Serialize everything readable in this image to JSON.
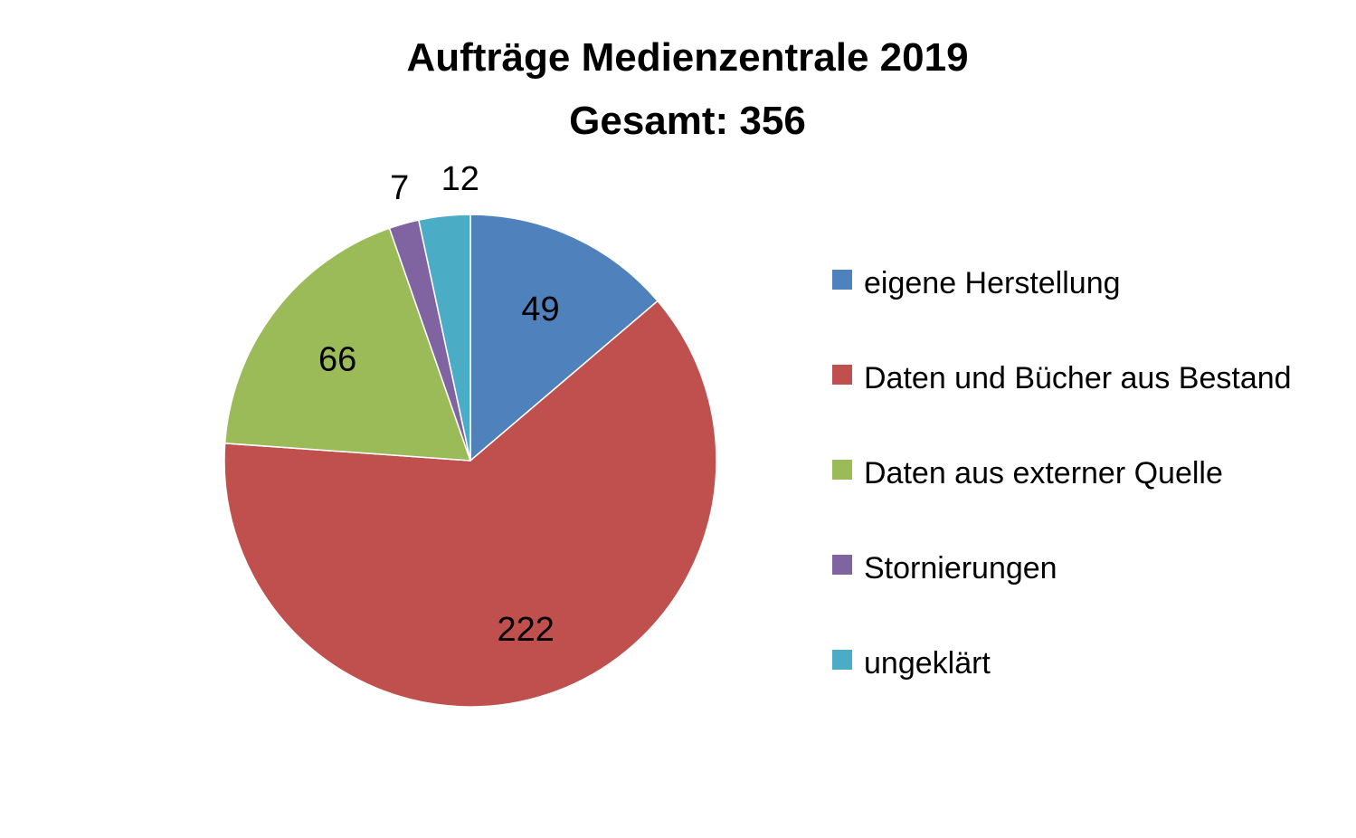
{
  "chart_data": {
    "type": "pie",
    "title": "Aufträge Medienzentrale 2019",
    "subtitle": "Gesamt: 356",
    "legend_position": "right",
    "start_angle": "12 o'clock",
    "direction": "clockwise",
    "slices": [
      {
        "label": "eigene Herstellung",
        "value": 49,
        "color": "#4F81BD"
      },
      {
        "label": "Daten und Bücher aus Bestand",
        "value": 222,
        "color": "#C0504D"
      },
      {
        "label": "Daten aus externer Quelle",
        "value": 66,
        "color": "#9BBB59"
      },
      {
        "label": "Stornierungen",
        "value": 7,
        "color": "#8064A2"
      },
      {
        "label": "ungeklärt",
        "value": 12,
        "color": "#4BACC6"
      }
    ]
  }
}
